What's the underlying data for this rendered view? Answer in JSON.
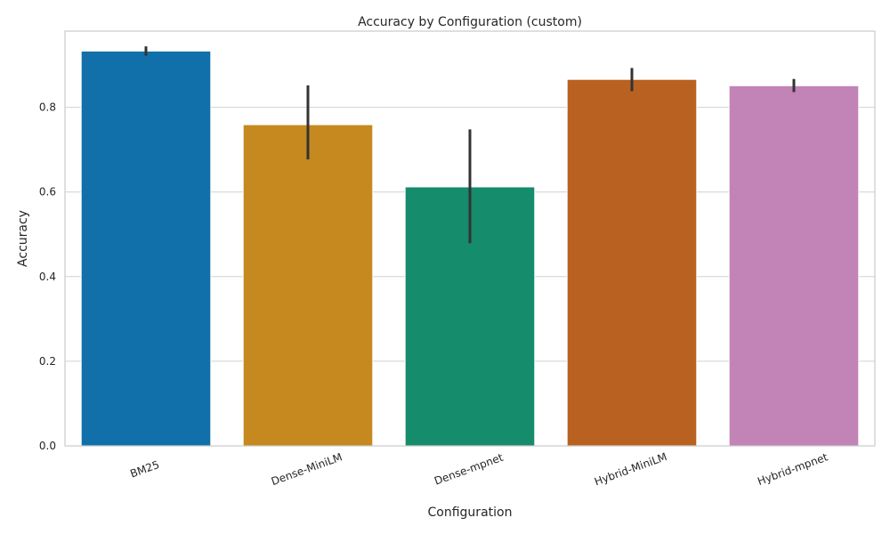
{
  "chart_data": {
    "type": "bar",
    "title": "Accuracy by Configuration (custom)",
    "xlabel": "Configuration",
    "ylabel": "Accuracy",
    "categories": [
      "BM25",
      "Dense-MiniLM",
      "Dense-mpnet",
      "Hybrid-MiniLM",
      "Hybrid-mpnet"
    ],
    "values": [
      0.933,
      0.759,
      0.612,
      0.866,
      0.851
    ],
    "error_low": [
      0.922,
      0.677,
      0.479,
      0.838,
      0.836
    ],
    "error_high": [
      0.944,
      0.852,
      0.748,
      0.893,
      0.867
    ],
    "colors": [
      "#1170aa",
      "#c5891f",
      "#158c6b",
      "#b96120",
      "#c283b6"
    ],
    "error_color": "#333333",
    "ylim": [
      0,
      0.98
    ],
    "yticks": [
      0.0,
      0.2,
      0.4,
      0.6,
      0.8
    ],
    "ytick_labels": [
      "0.0",
      "0.2",
      "0.4",
      "0.6",
      "0.8"
    ],
    "grid": "y",
    "legend": "none"
  }
}
